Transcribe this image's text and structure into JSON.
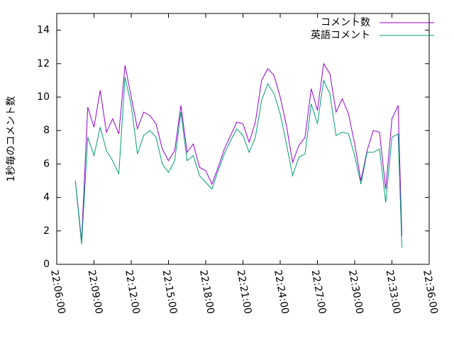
{
  "chart_data": {
    "type": "line",
    "y_label": "1秒毎のコメント数",
    "x": [
      "22:07:30",
      "22:08:00",
      "22:08:30",
      "22:09:00",
      "22:09:30",
      "22:10:00",
      "22:10:30",
      "22:11:00",
      "22:11:30",
      "22:12:00",
      "22:12:30",
      "22:13:00",
      "22:13:30",
      "22:14:00",
      "22:14:30",
      "22:15:00",
      "22:15:30",
      "22:16:00",
      "22:16:30",
      "22:17:00",
      "22:17:30",
      "22:18:00",
      "22:18:30",
      "22:19:00",
      "22:19:30",
      "22:20:00",
      "22:20:30",
      "22:21:00",
      "22:21:30",
      "22:22:00",
      "22:22:30",
      "22:23:00",
      "22:23:30",
      "22:24:00",
      "22:24:30",
      "22:25:00",
      "22:25:30",
      "22:26:00",
      "22:26:30",
      "22:27:00",
      "22:27:30",
      "22:28:00",
      "22:28:30",
      "22:29:00",
      "22:29:30",
      "22:30:00",
      "22:30:30",
      "22:31:00",
      "22:31:30",
      "22:32:00",
      "22:32:30",
      "22:33:00",
      "22:33:30",
      "22:33:48"
    ],
    "series": [
      {
        "name": "コメント数",
        "color": "#9400d3",
        "values": [
          5.0,
          1.4,
          9.4,
          8.2,
          10.4,
          7.9,
          8.7,
          7.8,
          11.9,
          10.0,
          8.1,
          9.1,
          8.9,
          8.4,
          6.9,
          6.2,
          6.8,
          9.5,
          6.7,
          7.2,
          5.8,
          5.6,
          4.8,
          5.8,
          6.9,
          7.7,
          8.5,
          8.4,
          7.3,
          8.5,
          11.0,
          11.7,
          11.3,
          10.0,
          8.3,
          6.1,
          7.1,
          7.6,
          10.5,
          9.2,
          12.0,
          11.4,
          9.1,
          9.9,
          9.0,
          7.2,
          5.0,
          6.8,
          8.0,
          7.9,
          4.5,
          8.7,
          9.5,
          1.7
        ]
      },
      {
        "name": "英語コメント",
        "color": "#009e73",
        "values": [
          5.0,
          1.2,
          7.6,
          6.5,
          8.2,
          6.8,
          6.2,
          5.4,
          11.2,
          9.5,
          6.6,
          7.7,
          8.0,
          7.6,
          6.0,
          5.5,
          6.2,
          9.1,
          6.2,
          6.5,
          5.3,
          4.9,
          4.5,
          5.6,
          6.6,
          7.4,
          8.1,
          7.7,
          6.7,
          7.6,
          9.8,
          10.8,
          10.2,
          9.0,
          7.2,
          5.3,
          6.4,
          6.6,
          9.6,
          8.4,
          11.0,
          10.2,
          7.7,
          7.9,
          7.8,
          6.5,
          4.8,
          6.7,
          6.7,
          6.9,
          3.7,
          7.6,
          7.8,
          1.0
        ]
      }
    ],
    "xlim": [
      "22:06:00",
      "22:36:00"
    ],
    "xticks": [
      "22:06:00",
      "22:09:00",
      "22:12:00",
      "22:15:00",
      "22:18:00",
      "22:21:00",
      "22:24:00",
      "22:27:00",
      "22:30:00",
      "22:33:00",
      "22:36:00"
    ],
    "ylim": [
      0,
      15
    ],
    "yticks": [
      0,
      2,
      4,
      6,
      8,
      10,
      12,
      14
    ],
    "legend": "top-right",
    "grid": false
  }
}
